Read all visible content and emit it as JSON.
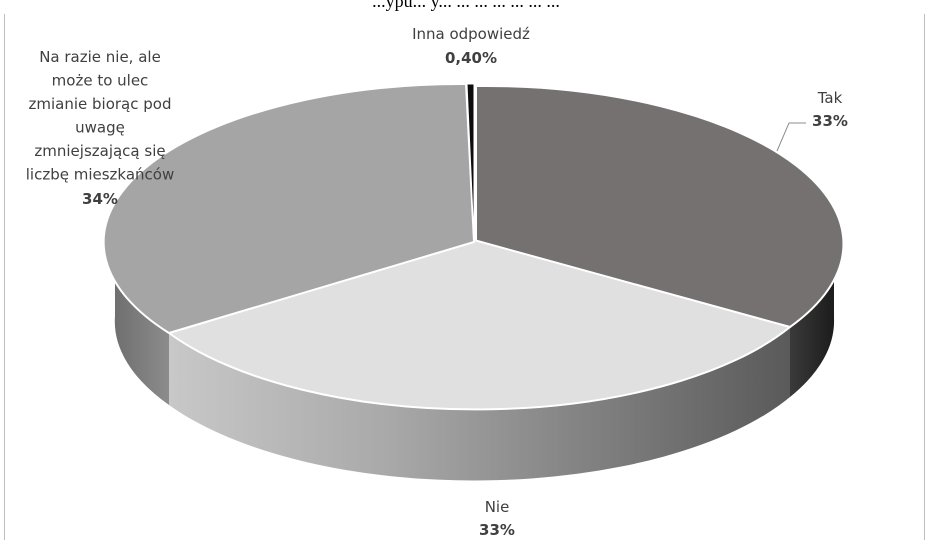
{
  "caption": "...ypu... y... ... ... ... ... ... ...",
  "chart_data": {
    "type": "pie",
    "title": "",
    "slices": [
      {
        "name": "Tak",
        "value": 33,
        "label": "33%",
        "color": "#767171"
      },
      {
        "name": "Nie",
        "value": 33,
        "label": "33%",
        "color": "#e0e0e0"
      },
      {
        "name": "Na razie nie, ale może to ulec zmianie biorąc pod uwagę zmniejszającą się liczbę mieszkańców",
        "value": 34,
        "label": "34%",
        "color": "#a5a5a5"
      },
      {
        "name": "Inna odpowiedź",
        "value": 0.4,
        "label": "0,40%",
        "color": "#0d0d0d"
      }
    ],
    "name_lines": {
      "tak": [
        "Tak"
      ],
      "nie": [
        "Nie"
      ],
      "na_razie": [
        "Na razie nie, ale",
        "może to ulec",
        "zmianie biorąc pod",
        "uwagę",
        "zmniejszającą się",
        "liczbę mieszkańców"
      ],
      "inna": [
        "Inna odpowiedź"
      ]
    },
    "style": "3d-exploded-pie",
    "legend": "none"
  }
}
